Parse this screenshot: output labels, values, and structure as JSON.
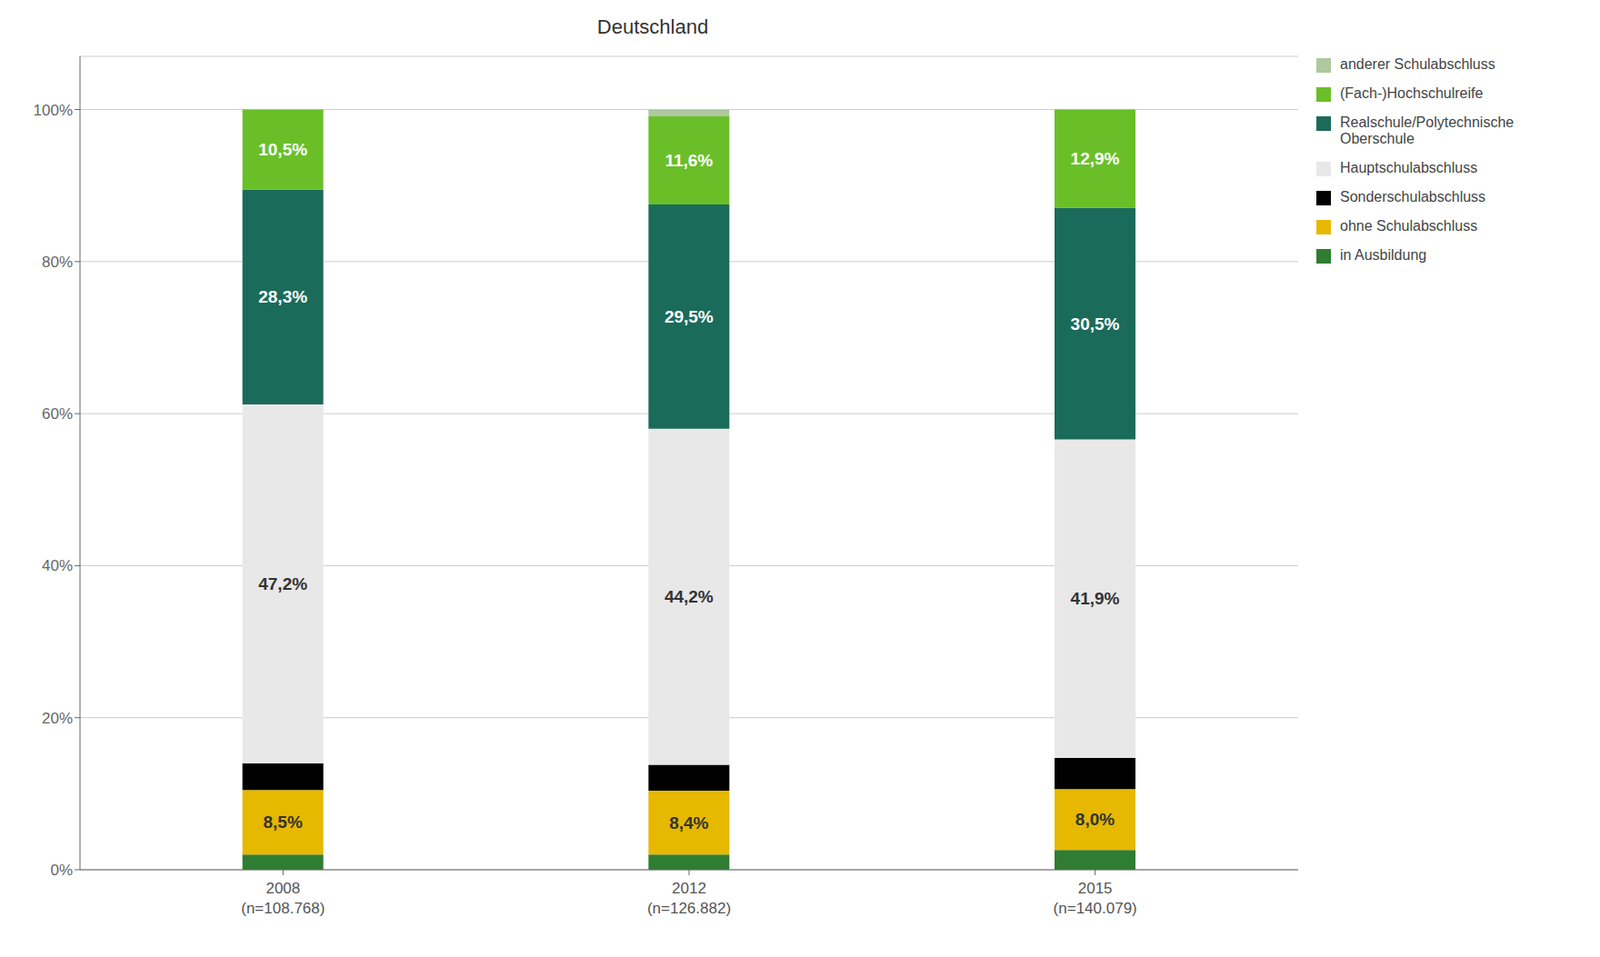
{
  "chart_data": {
    "type": "bar",
    "title": "Deutschland",
    "stacked": true,
    "grid": true,
    "legend": "upper right",
    "categories": [
      "2008\n(n=108.768)",
      "2012\n(n=126.882)",
      "2015\n(n=140.079)"
    ],
    "series": [
      {
        "name": "in Ausbildung",
        "color": "#2e7d32",
        "values": [
          2.0,
          2.0,
          2.6
        ]
      },
      {
        "name": "ohne Schulabschluss",
        "color": "#e6b800",
        "values": [
          8.5,
          8.4,
          8.0
        ],
        "data_labels": true,
        "value_labels": [
          "8,5%",
          "8,4%",
          "8,0%"
        ]
      },
      {
        "name": "Sonderschulabschluss",
        "color": "#000000",
        "values": [
          3.5,
          3.4,
          4.1
        ]
      },
      {
        "name": "Hauptschulabschluss",
        "color": "#e8e8e8",
        "values": [
          47.2,
          44.2,
          41.9
        ],
        "data_labels": true,
        "value_labels": [
          "47,2%",
          "44,2%",
          "41,9%"
        ]
      },
      {
        "name": "Realschule/Polytechnische\nOberschule",
        "color": "#1b6b5a",
        "values": [
          28.3,
          29.5,
          30.5
        ],
        "data_labels": true,
        "value_labels": [
          "28,3%",
          "29,5%",
          "30,5%"
        ]
      },
      {
        "name": "(Fach-)Hochschulreife",
        "color": "#6abf29",
        "values": [
          10.5,
          11.6,
          12.9
        ],
        "data_labels": true,
        "value_labels": [
          "10,5%",
          "11,6%",
          "12,9%"
        ]
      },
      {
        "name": "anderer Schulabschluss",
        "color": "#aec8a0",
        "values": [
          0.0,
          0.9,
          0.0
        ]
      }
    ],
    "ylim": [
      0,
      107
    ],
    "yticks": [
      {
        "value": 0,
        "label": "0%"
      },
      {
        "value": 20,
        "label": "20%"
      },
      {
        "value": 40,
        "label": "40%"
      },
      {
        "value": 60,
        "label": "60%"
      },
      {
        "value": 80,
        "label": "80%"
      },
      {
        "value": 100,
        "label": "100%"
      }
    ]
  }
}
